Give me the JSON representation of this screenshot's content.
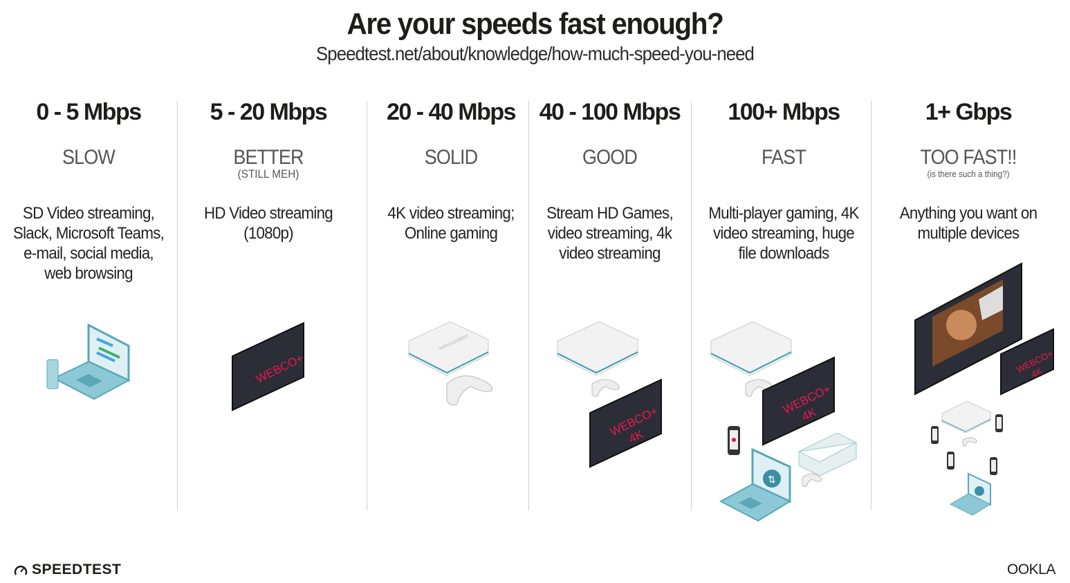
{
  "header": {
    "title": "Are your speeds fast enough?",
    "subtitle": "Speedtest.net/about/knowledge/how-much-speed-you-need"
  },
  "tiers": [
    {
      "speed": "0 - 5 Mbps",
      "label": "SLOW",
      "note": "",
      "description": "SD Video streaming, Slack, Microsoft Teams, e-mail, social media, web browsing"
    },
    {
      "speed": "5 - 20 Mbps",
      "label": "BETTER",
      "note": "(STILL MEH)",
      "description": "HD Video streaming (1080p)"
    },
    {
      "speed": "20 - 40 Mbps",
      "label": "SOLID",
      "note": "",
      "description": "4K video streaming; Online gaming"
    },
    {
      "speed": "40 - 100 Mbps",
      "label": "GOOD",
      "note": "",
      "description": "Stream HD Games, video streaming, 4k video streaming"
    },
    {
      "speed": "100+ Mbps",
      "label": "FAST",
      "note": "",
      "description": "Multi-player gaming, 4K video streaming, huge file downloads"
    },
    {
      "speed": "1+ Gbps",
      "label": "TOO FAST!!",
      "note": "(is there such a thing?)",
      "description": "Anything you want on multiple devices"
    }
  ],
  "tv_screen": {
    "brand": "WEBCO+",
    "resolution": "4K"
  },
  "console_brand": "webcostation",
  "colors": {
    "tv_text": "#e8174f",
    "laptop": "#8cc8d6",
    "divider": "#c9d3d6",
    "text": "#1d1d1b",
    "label": "#555555"
  },
  "footer": {
    "left_logo": "SPEEDTEST",
    "right_logo": "OOKLA"
  }
}
